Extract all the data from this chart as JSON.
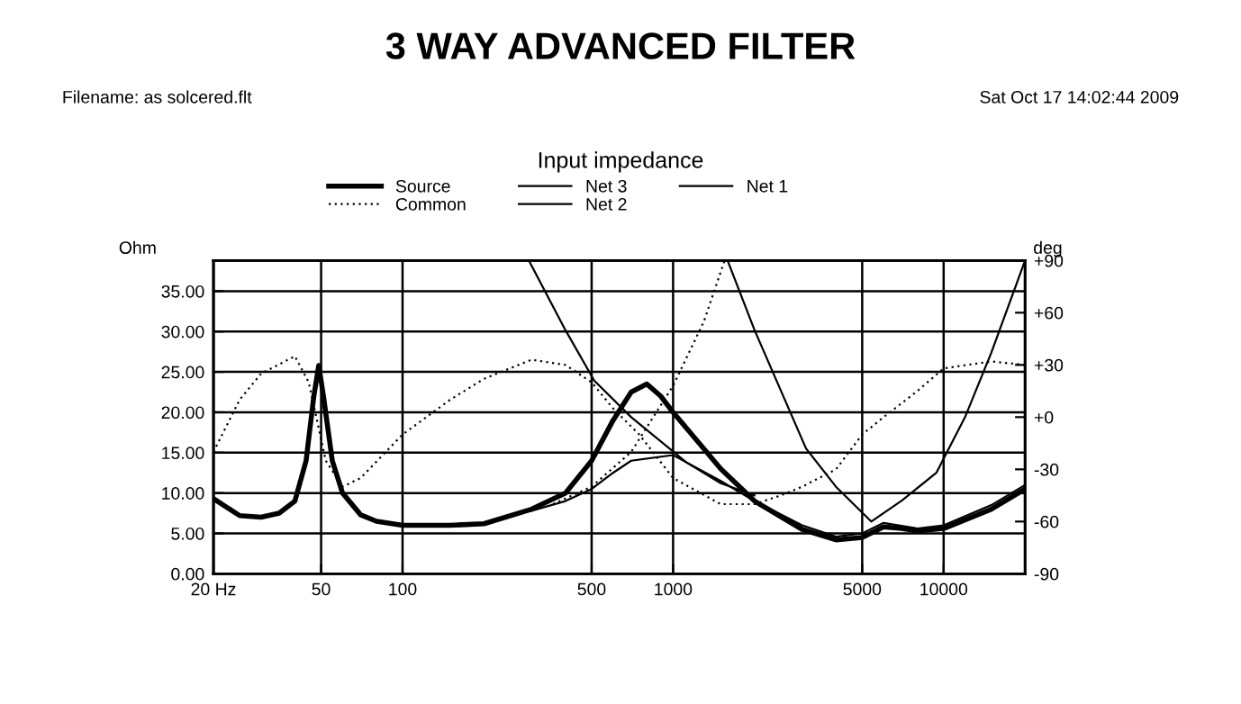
{
  "chart_data": {
    "type": "line",
    "title": "3 WAY ADVANCED FILTER",
    "subtitle": "Input impedance",
    "annotations": [
      "Filename: as solcered.flt",
      "Sat Oct 17 14:02:44 2009"
    ],
    "ylabel": "Ohm",
    "y2label": "deg",
    "log": "x",
    "grid": true,
    "legend": "top",
    "xlim": [
      20,
      20000
    ],
    "xticks": [
      {
        "value": 20,
        "label": "20 Hz"
      },
      50,
      100,
      500,
      1000,
      5000,
      10000
    ],
    "ylim": [
      0,
      38.8
    ],
    "yticks": [
      {
        "value": 0,
        "label": "0.00"
      },
      {
        "value": 5,
        "label": "5.00"
      },
      {
        "value": 10,
        "label": "10.00"
      },
      {
        "value": 15,
        "label": "15.00"
      },
      {
        "value": 20,
        "label": "20.00"
      },
      {
        "value": 25,
        "label": "25.00"
      },
      {
        "value": 30,
        "label": "30.00"
      },
      {
        "value": 35,
        "label": "35.00"
      }
    ],
    "y2lim": [
      -90,
      90
    ],
    "y2ticks": [
      -90,
      -60,
      -30,
      {
        "value": 0,
        "label": "+0"
      },
      {
        "value": 30,
        "label": "+30"
      },
      {
        "value": 60,
        "label": "+60"
      },
      {
        "value": 90,
        "label": "+90"
      }
    ],
    "series": [
      {
        "name": "Source",
        "color": "#000000",
        "line_style": "solid",
        "x": [
          20,
          25,
          30,
          35,
          40,
          44,
          47,
          49,
          51,
          55,
          60,
          70,
          80,
          100,
          150,
          200,
          300,
          400,
          500,
          600,
          700,
          800,
          900,
          1000,
          1500,
          2000,
          3000,
          4000,
          5000,
          6000,
          7000,
          8000,
          10000,
          15000,
          20000
        ],
        "values": [
          9.3,
          7.2,
          7,
          7.5,
          9,
          14,
          22,
          25.8,
          22,
          14,
          10,
          7.3,
          6.5,
          6,
          6,
          6.2,
          8,
          10,
          14,
          19,
          22.5,
          23.5,
          22,
          20,
          13,
          9,
          5.5,
          4.2,
          4.5,
          5.8,
          5.6,
          5.3,
          5.6,
          8,
          10.5
        ]
      },
      {
        "name": "Common",
        "color": "#000000",
        "line_style": "dotted",
        "axis": "y2",
        "x": [
          20,
          25,
          30,
          40,
          45,
          48,
          52,
          60,
          70,
          100,
          150,
          200,
          300,
          400,
          500,
          600,
          750,
          1000,
          1500,
          2000,
          2500,
          3000,
          4000,
          5000,
          6000,
          8000,
          10000,
          15000,
          20000
        ],
        "values": [
          -20,
          10,
          25,
          35,
          20,
          0,
          -25,
          -40,
          -35,
          -10,
          10,
          22,
          33,
          30,
          20,
          5,
          -10,
          -35,
          -50,
          -50,
          -45,
          -40,
          -30,
          -10,
          0,
          15,
          28,
          32,
          30
        ]
      },
      {
        "name": "Net 3",
        "color": "#000000",
        "line_style": "solid",
        "axis": "y2",
        "x": [
          1590,
          2000,
          3100,
          4000,
          5400,
          7000,
          9400,
          12000,
          15000,
          20000
        ],
        "values": [
          90,
          50,
          -18,
          -40,
          -60,
          -48,
          -32,
          0,
          37,
          90
        ]
      },
      {
        "name": "Net 2",
        "color": "#000000",
        "line_style": "solid",
        "axis": "y2",
        "x": [
          293,
          400,
          511,
          700,
          1120,
          1500,
          2000
        ],
        "values": [
          90,
          50,
          21,
          0,
          -26,
          -38,
          -45
        ]
      },
      {
        "name": "Net 1",
        "color": "#000000",
        "line_style": "solid",
        "axis": "y",
        "x": [
          300,
          400,
          500,
          600,
          700,
          1000,
          1500,
          2000,
          3000,
          4000,
          5000,
          6000,
          8000,
          10000,
          15000,
          20000
        ],
        "values": [
          7.8,
          9,
          10.5,
          12.5,
          14,
          14.7,
          11.5,
          9,
          6,
          4.6,
          5,
          6.3,
          5.6,
          6,
          8.5,
          11
        ]
      },
      {
        "color": "#000000",
        "line_style": "dotted",
        "axis": "y2",
        "x": [
          360,
          500,
          700,
          1000,
          1300,
          1550
        ],
        "values": [
          -50,
          -40,
          -20,
          18,
          55,
          90
        ]
      }
    ]
  }
}
